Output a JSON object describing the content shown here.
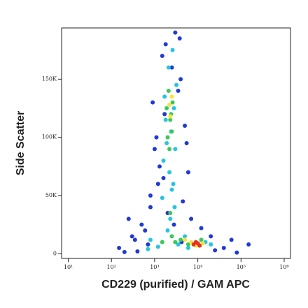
{
  "chart_data": {
    "type": "scatter",
    "x_label": "CD229 (purified) / GAM APC",
    "y_label": "Side Scatter",
    "log_x": true,
    "xlim": [
      7,
      1400000
    ],
    "xticks": [
      {
        "value": 10,
        "label": "10¹"
      },
      {
        "value": 100,
        "label": "10²"
      },
      {
        "value": 1000,
        "label": "10³"
      },
      {
        "value": 10000,
        "label": "10⁴"
      },
      {
        "value": 100000,
        "label": "10⁵"
      },
      {
        "value": 1000000,
        "label": "10⁶"
      }
    ],
    "ylim": [
      -4000,
      194000
    ],
    "yticks": [
      0,
      {
        "value": 50000,
        "label": "50K"
      },
      {
        "value": 100000,
        "label": "100K"
      },
      {
        "value": 150000,
        "label": "150K"
      }
    ],
    "series": [
      {
        "color": "#1f3ad6",
        "x": [
          150,
          300,
          500,
          800,
          1200,
          1000,
          1800,
          4000,
          5000,
          6000,
          700,
          400,
          250,
          20000,
          40000,
          60000,
          3000,
          900,
          1500,
          2500,
          3500,
          4500,
          1300,
          600,
          12000,
          25000,
          800,
          2000,
          5500,
          1700,
          1100,
          3800,
          150000,
          80000,
          350,
          200,
          1600,
          2800,
          4200,
          7000
        ],
        "values": [
          5000,
          15000,
          25000,
          40000,
          60000,
          90000,
          180000,
          150000,
          110000,
          70000,
          8000,
          2000,
          30000,
          15000,
          5000,
          12000,
          190000,
          130000,
          170000,
          160000,
          140000,
          45000,
          75000,
          20000,
          22000,
          3000,
          50000,
          35000,
          95000,
          120000,
          100000,
          185000,
          8000,
          1000,
          12000,
          1500,
          65000,
          25000,
          10000,
          30000
        ]
      },
      {
        "color": "#28c4e0",
        "x": [
          1600,
          1900,
          2400,
          2800,
          3200,
          2100,
          1700,
          2600,
          3000,
          2200,
          2500,
          1800,
          2900,
          2300,
          2000,
          800,
          1200,
          3500,
          5000,
          6000,
          700,
          15000,
          20000,
          1500,
          2700
        ],
        "values": [
          80000,
          95000,
          105000,
          125000,
          145000,
          160000,
          135000,
          175000,
          90000,
          70000,
          55000,
          115000,
          40000,
          30000,
          20000,
          12000,
          6000,
          8000,
          15000,
          5000,
          4000,
          10000,
          8000,
          48000,
          60000
        ]
      },
      {
        "color": "#3cc85a",
        "x": [
          2000,
          2300,
          2600,
          2100,
          2400,
          2200,
          2500,
          1900,
          2300,
          2500,
          3000,
          4000,
          6000,
          1500,
          12000
        ],
        "values": [
          100000,
          115000,
          130000,
          140000,
          120000,
          90000,
          105000,
          125000,
          35000,
          15000,
          10000,
          12000,
          8000,
          10000,
          12000
        ]
      },
      {
        "color": "#f5e53b",
        "x": [
          2300,
          2500,
          7000,
          9000,
          13000,
          2200,
          5000
        ],
        "values": [
          118000,
          135000,
          10000,
          7000,
          9000,
          128000,
          12000
        ]
      },
      {
        "color": "#e8321e",
        "x": [
          8000,
          10000,
          11000,
          9000
        ],
        "values": [
          8000,
          9000,
          7000,
          10000
        ]
      }
    ]
  }
}
